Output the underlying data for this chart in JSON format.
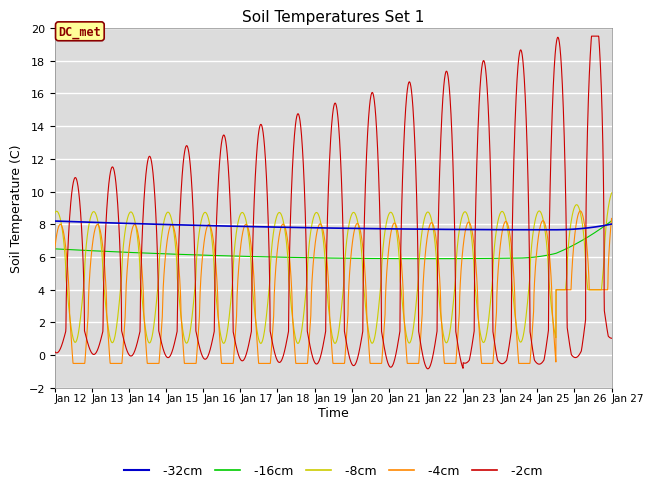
{
  "title": "Soil Temperatures Set 1",
  "xlabel": "Time",
  "ylabel": "Soil Temperature (C)",
  "ylim": [
    -2,
    20
  ],
  "yticks": [
    -2,
    0,
    2,
    4,
    6,
    8,
    10,
    12,
    14,
    16,
    18,
    20
  ],
  "colors": {
    "-32cm": "#0000cc",
    "-16cm": "#00cc00",
    "-8cm": "#cccc00",
    "-4cm": "#ff8800",
    "-2cm": "#cc0000"
  },
  "background_color": "#ffffff",
  "plot_bg_color": "#dcdcdc",
  "annotation_text": "DC_met",
  "annotation_bg": "#ffff99",
  "annotation_border": "#8b0000",
  "x_labels": [
    "Jan 12",
    "Jan 13",
    "Jan 14",
    "Jan 15",
    "Jan 16",
    "Jan 17",
    "Jan 18",
    "Jan 19",
    "Jan 20",
    "Jan 21",
    "Jan 22",
    "Jan 23",
    "Jan 24",
    "Jan 25",
    "Jan 26",
    "Jan 27"
  ]
}
